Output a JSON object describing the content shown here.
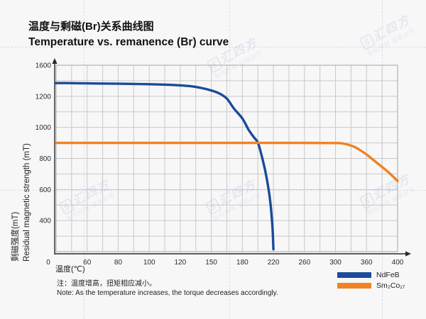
{
  "header": {
    "title_zh": "温度与剩磁(Br)关系曲线图",
    "title_en": "Temperature vs. remanence (Br) curve"
  },
  "chart_data": {
    "type": "line",
    "title": "Temperature vs. remanence (Br) curve",
    "x_axis": {
      "label": "温度(℃)",
      "tick_labels": [
        "0",
        "60",
        "80",
        "100",
        "120",
        "150",
        "180",
        "220",
        "260",
        "300",
        "360",
        "400"
      ],
      "scale_note": "designer axis: labeled ticks evenly spaced in pixels"
    },
    "y_axis": {
      "label_zh": "剩磁强度(mT)",
      "label_en": "Residual magnetic strength (mT)",
      "tick_labels": [
        "1600",
        "1200",
        "1000",
        "800",
        "600",
        "400"
      ],
      "top_value": 1600,
      "bottom_value": 200
    },
    "grid": true,
    "legend_position": "bottom-right",
    "series": [
      {
        "name": "NdFeB",
        "color": "#1b4b99",
        "points": [
          [
            0,
            1370
          ],
          [
            30,
            1369
          ],
          [
            60,
            1366
          ],
          [
            80,
            1362
          ],
          [
            100,
            1355
          ],
          [
            115,
            1346
          ],
          [
            130,
            1330
          ],
          [
            140,
            1308
          ],
          [
            150,
            1275
          ],
          [
            158,
            1235
          ],
          [
            165,
            1185
          ],
          [
            172,
            1120
          ],
          [
            180,
            1057
          ],
          [
            188,
            985
          ],
          [
            195,
            935
          ],
          [
            200,
            902
          ],
          [
            205,
            815
          ],
          [
            209,
            730
          ],
          [
            212,
            655
          ],
          [
            215,
            560
          ],
          [
            217,
            470
          ],
          [
            219,
            340
          ],
          [
            220,
            215
          ]
        ]
      },
      {
        "name": "Sm₂Co₁₇",
        "color": "#f08222",
        "points": [
          [
            0,
            900
          ],
          [
            50,
            900
          ],
          [
            100,
            900
          ],
          [
            150,
            900
          ],
          [
            200,
            900
          ],
          [
            250,
            900
          ],
          [
            300,
            899
          ],
          [
            312,
            897
          ],
          [
            325,
            888
          ],
          [
            338,
            872
          ],
          [
            350,
            848
          ],
          [
            362,
            818
          ],
          [
            375,
            765
          ],
          [
            388,
            712
          ],
          [
            400,
            655
          ]
        ]
      }
    ]
  },
  "legend": {
    "items": [
      {
        "label": "NdFeB",
        "color": "#1b4b99"
      },
      {
        "label": "Sm₂Co₁₇",
        "color": "#f08222"
      }
    ]
  },
  "note": {
    "line_zh": "注：温度增高，扭矩相应减小。",
    "line_en": "Note: As the temperature increases, the torque decreases accordingly."
  },
  "watermark": {
    "logo": "5",
    "brand": "汇四方",
    "sub": "版权所有 盗图必究"
  },
  "colors": {
    "ndfeb": "#1b4b99",
    "sm2co17": "#f08222",
    "grid": "#c8c8c8",
    "plot_border": "#a5a5a5",
    "axis": "#2a2a2a",
    "background": "#f7f7f8"
  }
}
